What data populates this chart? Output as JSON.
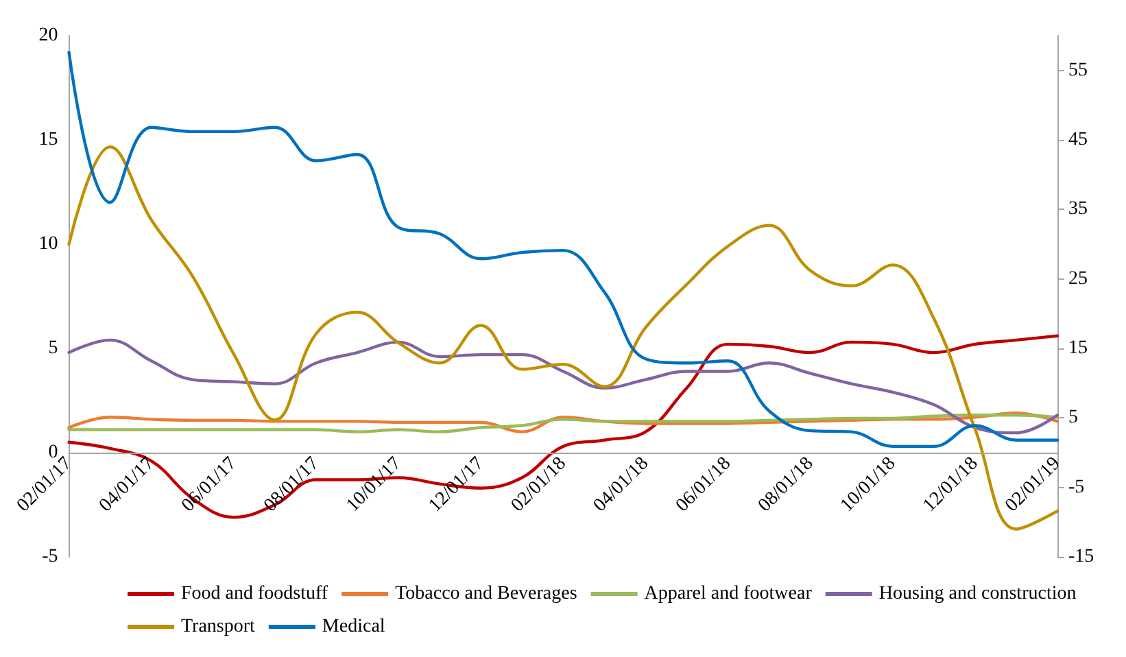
{
  "chart_data": {
    "type": "line",
    "categories": [
      "02/01/17",
      null,
      "04/01/17",
      null,
      "06/01/17",
      null,
      "08/01/17",
      null,
      "10/01/17",
      null,
      "12/01/17",
      null,
      "02/01/18",
      null,
      "04/01/18",
      null,
      "06/01/18",
      null,
      "08/01/18",
      null,
      "10/01/18",
      null,
      "12/01/18",
      null,
      "02/01/19"
    ],
    "series": [
      {
        "name": "Food and foodstuff",
        "color": "#c00000",
        "values": [
          0.5,
          0.2,
          -0.4,
          -2.2,
          -3.1,
          -2.5,
          -1.3,
          -1.3,
          -1.2,
          -1.5,
          -1.7,
          -1.2,
          0.3,
          0.6,
          1.0,
          3.1,
          5.2,
          5.1,
          4.8,
          5.3,
          5.2,
          4.8,
          5.2,
          5.4,
          5.6
        ]
      },
      {
        "name": "Tobacco and Beverages",
        "color": "#ed7d31",
        "values": [
          1.2,
          1.7,
          1.6,
          1.55,
          1.55,
          1.5,
          1.5,
          1.5,
          1.45,
          1.45,
          1.45,
          1.0,
          1.7,
          1.5,
          1.4,
          1.4,
          1.4,
          1.45,
          1.5,
          1.55,
          1.6,
          1.6,
          1.7,
          1.9,
          1.5
        ]
      },
      {
        "name": "Apparel and footwear",
        "color": "#9bbb59",
        "values": [
          1.1,
          1.1,
          1.1,
          1.1,
          1.1,
          1.1,
          1.1,
          1.0,
          1.1,
          1.0,
          1.2,
          1.3,
          1.6,
          1.5,
          1.5,
          1.5,
          1.5,
          1.55,
          1.6,
          1.65,
          1.65,
          1.75,
          1.8,
          1.8,
          1.7
        ]
      },
      {
        "name": "Housing and construction",
        "color": "#8064a2",
        "values": [
          4.8,
          5.4,
          4.4,
          3.5,
          3.4,
          3.3,
          4.3,
          4.8,
          5.3,
          4.6,
          4.7,
          4.7,
          3.9,
          3.1,
          3.5,
          3.9,
          3.9,
          4.3,
          3.8,
          3.3,
          2.9,
          2.3,
          1.2,
          0.95,
          1.8
        ]
      },
      {
        "name": "Transport",
        "color": "#bf9000",
        "axis": "y2",
        "values": [
          30,
          44,
          33.5,
          25.4,
          14.2,
          4.7,
          17.1,
          20.2,
          15.8,
          12.9,
          18.3,
          12,
          12.7,
          9.5,
          18,
          24.2,
          29.7,
          32.7,
          26.2,
          24,
          27,
          19.3,
          3.4,
          -11,
          -8.4
        ]
      },
      {
        "name": "Medical",
        "color": "#0070c0",
        "values": [
          19.2,
          12.0,
          15.6,
          15.4,
          15.4,
          15.6,
          14.0,
          14.3,
          10.8,
          10.5,
          9.3,
          9.6,
          9.7,
          7.7,
          4.5,
          4.3,
          4.4,
          2.0,
          1.05,
          1.0,
          0.3,
          0.3,
          1.3,
          0.6,
          0.6
        ]
      }
    ],
    "ylim": [
      -5,
      20
    ],
    "yticks": [
      -5,
      0,
      5,
      10,
      15,
      20
    ],
    "y2lim": [
      -15,
      60
    ],
    "y2ticks": [
      -15,
      -5,
      5,
      15,
      25,
      35,
      45,
      55
    ],
    "grid": false,
    "legend": "bottom",
    "marker": "none",
    "line_style": "solid"
  }
}
